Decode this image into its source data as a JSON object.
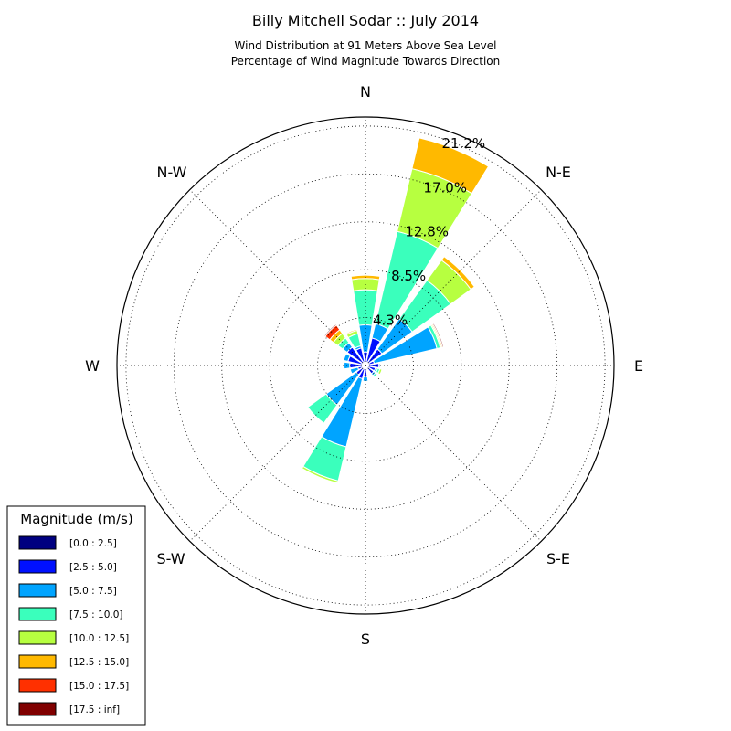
{
  "chart_data": {
    "type": "windrose",
    "title": "Billy Mitchell Sodar :: July 2014",
    "subtitle_lines": [
      "Wind Distribution at 91 Meters Above Sea Level",
      "Percentage of Wind Magnitude Towards Direction"
    ],
    "direction_labels": [
      "N",
      "N-E",
      "E",
      "S-E",
      "S",
      "S-W",
      "W",
      "N-W"
    ],
    "ring_labels": [
      "4.3%",
      "8.5%",
      "12.8%",
      "17.0%",
      "21.2%"
    ],
    "radial_max_percent": 21.2,
    "grid": true,
    "legend": {
      "title": "Magnitude (m/s)",
      "placement": "bottom-left",
      "bins": [
        {
          "label": "[0.0 : 2.5]",
          "color": "#000080"
        },
        {
          "label": "[2.5 : 5.0]",
          "color": "#0010ff"
        },
        {
          "label": "[5.0 : 7.5]",
          "color": "#00a4ff"
        },
        {
          "label": "[7.5 : 10.0]",
          "color": "#3affbc"
        },
        {
          "label": "[10.0 : 12.5]",
          "color": "#b7ff40"
        },
        {
          "label": "[12.5 : 15.0]",
          "color": "#ffb900"
        },
        {
          "label": "[15.0 : 17.5]",
          "color": "#ff3000"
        },
        {
          "label": "[17.5 : inf]",
          "color": "#800000"
        }
      ]
    },
    "sectors": [
      {
        "direction_deg": 0,
        "cumulative_percent": [
          0.3,
          1.2,
          3.6,
          6.7,
          7.7,
          8.0,
          8.0,
          8.0
        ]
      },
      {
        "direction_deg": 22.5,
        "cumulative_percent": [
          0.3,
          2.5,
          3.8,
          12.2,
          17.9,
          20.7,
          20.7,
          20.7
        ]
      },
      {
        "direction_deg": 45,
        "cumulative_percent": [
          0.3,
          1.8,
          5.1,
          9.3,
          11.5,
          11.9,
          11.9,
          11.9
        ]
      },
      {
        "direction_deg": 67.5,
        "cumulative_percent": [
          0.3,
          0.8,
          6.5,
          6.8,
          6.9,
          7.0,
          7.0,
          7.1
        ]
      },
      {
        "direction_deg": 90,
        "cumulative_percent": [
          0.2,
          1.2,
          1.3,
          1.3,
          1.3,
          1.3,
          1.3,
          1.3
        ]
      },
      {
        "direction_deg": 112.5,
        "cumulative_percent": [
          0.2,
          0.9,
          1.1,
          1.3,
          1.5,
          1.5,
          1.5,
          1.5
        ]
      },
      {
        "direction_deg": 135,
        "cumulative_percent": [
          0.2,
          0.9,
          1.1,
          1.3,
          1.3,
          1.3,
          1.3,
          1.3
        ]
      },
      {
        "direction_deg": 157.5,
        "cumulative_percent": [
          0.3,
          0.4,
          0.4,
          0.4,
          0.4,
          0.4,
          0.4,
          0.4
        ]
      },
      {
        "direction_deg": 180,
        "cumulative_percent": [
          0.3,
          1.0,
          1.4,
          1.4,
          1.4,
          1.4,
          1.4,
          1.4
        ]
      },
      {
        "direction_deg": 202.5,
        "cumulative_percent": [
          0.3,
          1.2,
          7.4,
          10.5,
          10.7,
          10.7,
          10.7,
          10.7
        ]
      },
      {
        "direction_deg": 225,
        "cumulative_percent": [
          0.3,
          1.0,
          4.3,
          6.3,
          6.3,
          6.3,
          6.3,
          6.3
        ]
      },
      {
        "direction_deg": 247.5,
        "cumulative_percent": [
          0.3,
          0.7,
          1.4,
          1.4,
          1.4,
          1.4,
          1.4,
          1.4
        ]
      },
      {
        "direction_deg": 270,
        "cumulative_percent": [
          0.3,
          1.4,
          1.9,
          1.9,
          1.9,
          1.9,
          1.9,
          1.9
        ]
      },
      {
        "direction_deg": 292.5,
        "cumulative_percent": [
          0.3,
          1.6,
          2.0,
          2.0,
          2.0,
          2.0,
          2.0,
          2.0
        ]
      },
      {
        "direction_deg": 315,
        "cumulative_percent": [
          0.3,
          2.0,
          2.5,
          3.0,
          3.5,
          3.9,
          4.4,
          4.5
        ]
      },
      {
        "direction_deg": 337.5,
        "cumulative_percent": [
          0.3,
          1.6,
          1.8,
          2.9,
          3.2,
          3.3,
          3.3,
          3.3
        ]
      }
    ]
  }
}
